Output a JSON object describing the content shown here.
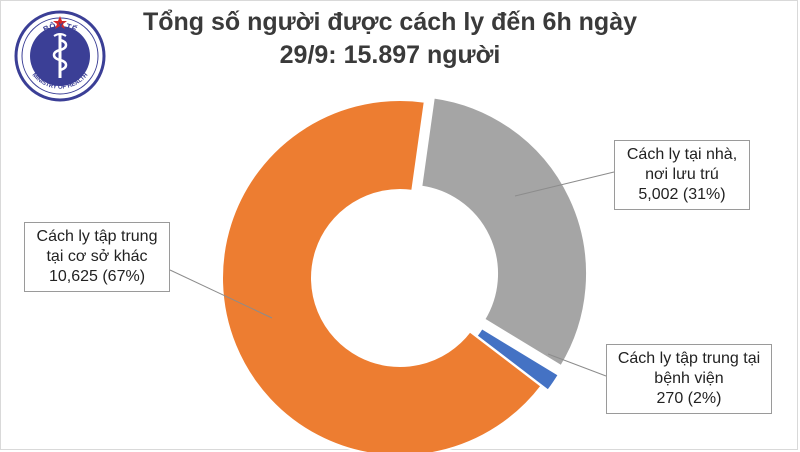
{
  "title_line1": "Tổng số người được cách ly đến 6h ngày",
  "title_line2": "29/9: 15.897 người",
  "logo": {
    "top_text": "BỘ Y TẾ",
    "bottom_text": "MINISTRY OF HEALTH",
    "color": "#3b3f96"
  },
  "chart_data": {
    "type": "pie",
    "title": "Tổng số người được cách ly đến 6h ngày 29/9: 15.897 người",
    "donut": true,
    "slices": [
      {
        "label_lines": [
          "Cách ly tại nhà,",
          "nơi lưu trú"
        ],
        "value": 5002,
        "value_text": "5,002 (31%)",
        "percent": 31,
        "color": "#a5a5a5"
      },
      {
        "label_lines": [
          "Cách ly tập trung tại",
          "bệnh viện"
        ],
        "value": 270,
        "value_text": "270 (2%)",
        "percent": 2,
        "color": "#4472c4"
      },
      {
        "label_lines": [
          "Cách ly tập trung",
          "tại cơ sở khác"
        ],
        "value": 10625,
        "value_text": "10,625 (67%)",
        "percent": 67,
        "color": "#ed7d31"
      }
    ]
  }
}
